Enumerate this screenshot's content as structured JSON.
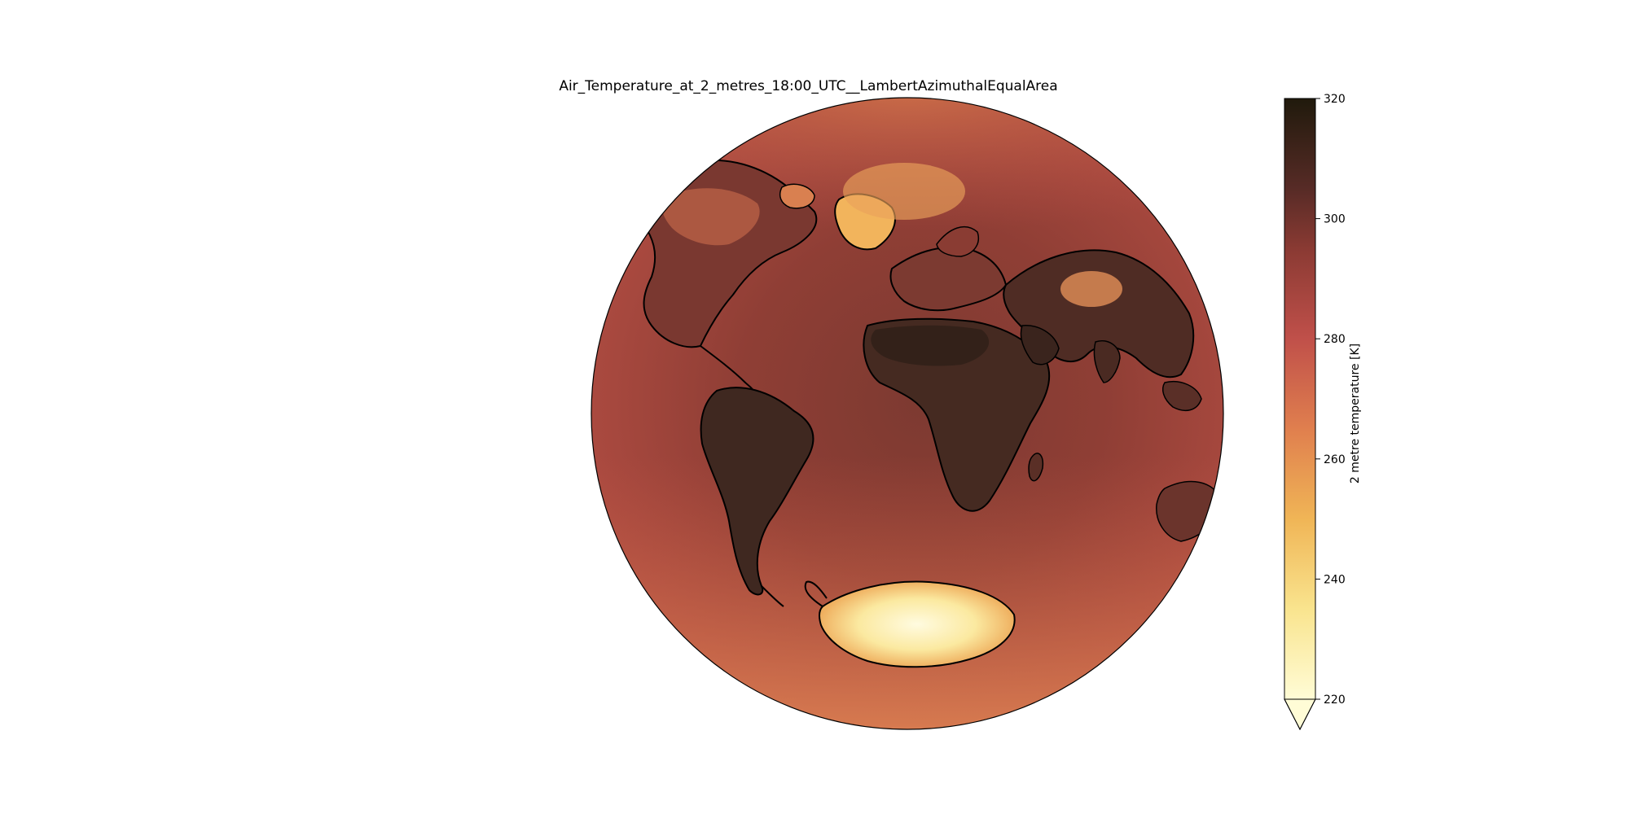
{
  "title": "Air_Temperature_at_2_metres_18:00_UTC__LambertAzimuthalEqualArea",
  "projection": "Lambert Azimuthal Equal Area",
  "colorbar": {
    "label": "2 metre temperature [K]",
    "min": 220,
    "max": 320,
    "extend": "min",
    "ticks": [
      220,
      240,
      260,
      280,
      300,
      320
    ],
    "tick_labels": [
      "220",
      "240",
      "260",
      "280",
      "300",
      "320"
    ],
    "colormap": "YlOrBr-to-dark (cmocean solar/amp-like)",
    "stops": [
      {
        "value": 220,
        "color": "#fffcd6"
      },
      {
        "value": 235,
        "color": "#f9e48e"
      },
      {
        "value": 250,
        "color": "#f0b556"
      },
      {
        "value": 265,
        "color": "#e07f4e"
      },
      {
        "value": 280,
        "color": "#c0504a"
      },
      {
        "value": 295,
        "color": "#8a3a33"
      },
      {
        "value": 305,
        "color": "#572b26"
      },
      {
        "value": 320,
        "color": "#201a0c"
      }
    ]
  },
  "colors": {
    "ocean_base": "#a84a40",
    "ocean_tropics": "#8a3a32",
    "land_warm": "#4a2a22",
    "land_cold": "#f2b45c",
    "ice_sheet": "#fff6c8",
    "coastline": "#000000"
  }
}
